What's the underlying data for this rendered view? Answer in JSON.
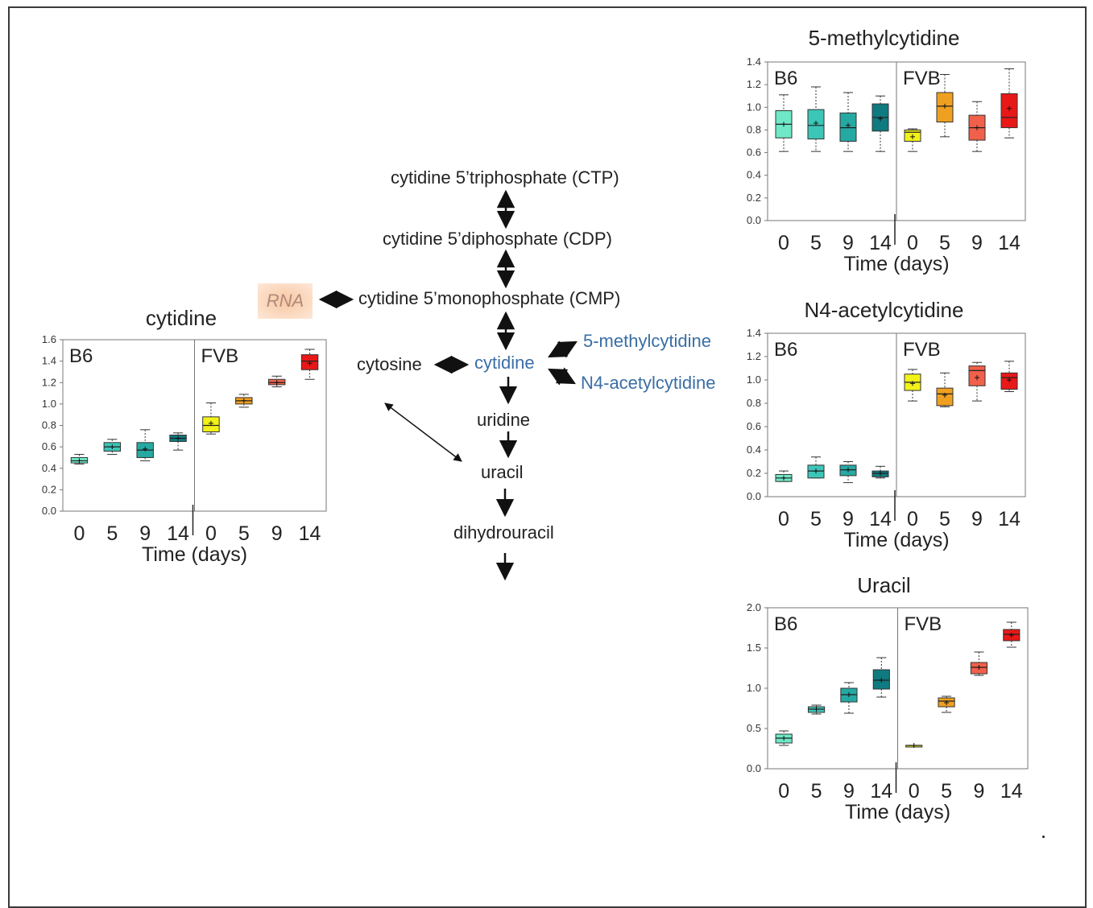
{
  "pathway": {
    "nodes": {
      "ctp": "cytidine 5’triphosphate (CTP)",
      "cdp": "cytidine 5’diphosphate (CDP)",
      "cmp": "cytidine 5’monophosphate (CMP)",
      "rna": "RNA",
      "cytosine": "cytosine",
      "cytidine": "cytidine",
      "methylcytidine": "5-methylcytidine",
      "acetylcytidine": "N4-acetylcytidine",
      "uridine": "uridine",
      "uracil": "uracil",
      "dihydrouracil": "dihydrouracil"
    },
    "colors": {
      "highlight_text": "#3a6ea5",
      "rna_highlight": "#f8c8a4",
      "arrow": "#111111"
    }
  },
  "chart_data": [
    {
      "id": "cytidine",
      "type": "box",
      "title": "cytidine",
      "xlabel": "Time (days)",
      "ylabel": "",
      "ylim": [
        0,
        1.6
      ],
      "yticks": [
        "0.0",
        "0.2",
        "0.4",
        "0.6",
        "0.8",
        "1.0",
        "1.2",
        "1.4",
        "1.6"
      ],
      "groups": [
        "B6",
        "FVB"
      ],
      "categories": [
        "0",
        "5",
        "9",
        "14",
        "0",
        "5",
        "9",
        "14"
      ],
      "boxes": [
        {
          "group": "B6",
          "x": "0",
          "min": 0.44,
          "q1": 0.45,
          "median": 0.47,
          "q3": 0.5,
          "max": 0.53,
          "mean": 0.47,
          "color": "#6fe8c8"
        },
        {
          "group": "B6",
          "x": "5",
          "min": 0.53,
          "q1": 0.56,
          "median": 0.6,
          "q3": 0.64,
          "max": 0.67,
          "mean": 0.6,
          "color": "#3cc6b8"
        },
        {
          "group": "B6",
          "x": "9",
          "min": 0.47,
          "q1": 0.5,
          "median": 0.57,
          "q3": 0.64,
          "max": 0.76,
          "mean": 0.58,
          "color": "#26a9a3"
        },
        {
          "group": "B6",
          "x": "14",
          "min": 0.57,
          "q1": 0.65,
          "median": 0.68,
          "q3": 0.71,
          "max": 0.73,
          "mean": 0.68,
          "color": "#0f7a80"
        },
        {
          "group": "FVB",
          "x": "0",
          "min": 0.72,
          "q1": 0.74,
          "median": 0.8,
          "q3": 0.88,
          "max": 1.01,
          "mean": 0.82,
          "color": "#f2f21a"
        },
        {
          "group": "FVB",
          "x": "5",
          "min": 0.97,
          "q1": 1.0,
          "median": 1.03,
          "q3": 1.06,
          "max": 1.09,
          "mean": 1.03,
          "color": "#f0a020"
        },
        {
          "group": "FVB",
          "x": "9",
          "min": 1.16,
          "q1": 1.18,
          "median": 1.2,
          "q3": 1.23,
          "max": 1.26,
          "mean": 1.2,
          "color": "#f0604a"
        },
        {
          "group": "FVB",
          "x": "14",
          "min": 1.23,
          "q1": 1.32,
          "median": 1.4,
          "q3": 1.46,
          "max": 1.51,
          "mean": 1.38,
          "color": "#e81818"
        }
      ]
    },
    {
      "id": "methylcytidine",
      "type": "box",
      "title": "5-methylcytidine",
      "xlabel": "Time (days)",
      "ylabel": "",
      "ylim": [
        0,
        1.4
      ],
      "yticks": [
        "0.0",
        "0.2",
        "0.4",
        "0.6",
        "0.8",
        "1.0",
        "1.2",
        "1.4"
      ],
      "groups": [
        "B6",
        "FVB"
      ],
      "categories": [
        "0",
        "5",
        "9",
        "14",
        "0",
        "5",
        "9",
        "14"
      ],
      "boxes": [
        {
          "group": "B6",
          "x": "0",
          "min": 0.61,
          "q1": 0.73,
          "median": 0.85,
          "q3": 0.97,
          "max": 1.11,
          "mean": 0.85,
          "color": "#6fe8c8"
        },
        {
          "group": "B6",
          "x": "5",
          "min": 0.61,
          "q1": 0.72,
          "median": 0.84,
          "q3": 0.98,
          "max": 1.18,
          "mean": 0.86,
          "color": "#3cc6b8"
        },
        {
          "group": "B6",
          "x": "9",
          "min": 0.61,
          "q1": 0.7,
          "median": 0.82,
          "q3": 0.95,
          "max": 1.13,
          "mean": 0.84,
          "color": "#26a9a3"
        },
        {
          "group": "B6",
          "x": "14",
          "min": 0.61,
          "q1": 0.79,
          "median": 0.91,
          "q3": 1.03,
          "max": 1.1,
          "mean": 0.9,
          "color": "#0f7a80"
        },
        {
          "group": "FVB",
          "x": "0",
          "min": 0.61,
          "q1": 0.7,
          "median": 0.78,
          "q3": 0.8,
          "max": 0.81,
          "mean": 0.74,
          "color": "#f2f21a"
        },
        {
          "group": "FVB",
          "x": "5",
          "min": 0.74,
          "q1": 0.87,
          "median": 1.01,
          "q3": 1.13,
          "max": 1.29,
          "mean": 1.01,
          "color": "#f0a020"
        },
        {
          "group": "FVB",
          "x": "9",
          "min": 0.61,
          "q1": 0.71,
          "median": 0.82,
          "q3": 0.93,
          "max": 1.05,
          "mean": 0.82,
          "color": "#f0604a"
        },
        {
          "group": "FVB",
          "x": "14",
          "min": 0.73,
          "q1": 0.82,
          "median": 0.91,
          "q3": 1.12,
          "max": 1.34,
          "mean": 0.99,
          "color": "#e81818"
        }
      ]
    },
    {
      "id": "acetylcytidine",
      "type": "box",
      "title": "N4-acetylcytidine",
      "xlabel": "Time (days)",
      "ylabel": "",
      "ylim": [
        0,
        1.4
      ],
      "yticks": [
        "0.0",
        "0.2",
        "0.4",
        "0.6",
        "0.8",
        "1.0",
        "1.2",
        "1.4"
      ],
      "groups": [
        "B6",
        "FVB"
      ],
      "categories": [
        "0",
        "5",
        "9",
        "14",
        "0",
        "5",
        "9",
        "14"
      ],
      "boxes": [
        {
          "group": "B6",
          "x": "0",
          "min": 0.13,
          "q1": 0.13,
          "median": 0.16,
          "q3": 0.19,
          "max": 0.22,
          "mean": 0.16,
          "color": "#6fe8c8"
        },
        {
          "group": "B6",
          "x": "5",
          "min": 0.16,
          "q1": 0.16,
          "median": 0.22,
          "q3": 0.27,
          "max": 0.34,
          "mean": 0.22,
          "color": "#3cc6b8"
        },
        {
          "group": "B6",
          "x": "9",
          "min": 0.12,
          "q1": 0.18,
          "median": 0.23,
          "q3": 0.27,
          "max": 0.3,
          "mean": 0.23,
          "color": "#26a9a3"
        },
        {
          "group": "B6",
          "x": "14",
          "min": 0.16,
          "q1": 0.17,
          "median": 0.2,
          "q3": 0.22,
          "max": 0.26,
          "mean": 0.2,
          "color": "#0f7a80"
        },
        {
          "group": "FVB",
          "x": "0",
          "min": 0.82,
          "q1": 0.91,
          "median": 0.98,
          "q3": 1.05,
          "max": 1.09,
          "mean": 0.97,
          "color": "#f2f21a"
        },
        {
          "group": "FVB",
          "x": "5",
          "min": 0.77,
          "q1": 0.78,
          "median": 0.88,
          "q3": 0.93,
          "max": 1.06,
          "mean": 0.87,
          "color": "#f0a020"
        },
        {
          "group": "FVB",
          "x": "9",
          "min": 0.82,
          "q1": 0.95,
          "median": 1.08,
          "q3": 1.12,
          "max": 1.15,
          "mean": 1.02,
          "color": "#f0604a"
        },
        {
          "group": "FVB",
          "x": "14",
          "min": 0.9,
          "q1": 0.92,
          "median": 1.02,
          "q3": 1.06,
          "max": 1.16,
          "mean": 1.0,
          "color": "#e81818"
        }
      ]
    },
    {
      "id": "uracil",
      "type": "box",
      "title": "Uracil",
      "xlabel": "Time (days)",
      "ylabel": "",
      "ylim": [
        0,
        2.0
      ],
      "yticks": [
        "0.0",
        "0.5",
        "1.0",
        "1.5",
        "2.0"
      ],
      "groups": [
        "B6",
        "FVB"
      ],
      "categories": [
        "0",
        "5",
        "9",
        "14",
        "0",
        "5",
        "9",
        "14"
      ],
      "boxes": [
        {
          "group": "B6",
          "x": "0",
          "min": 0.29,
          "q1": 0.32,
          "median": 0.38,
          "q3": 0.43,
          "max": 0.47,
          "mean": 0.38,
          "color": "#6fe8c8"
        },
        {
          "group": "B6",
          "x": "5",
          "min": 0.68,
          "q1": 0.7,
          "median": 0.74,
          "q3": 0.77,
          "max": 0.79,
          "mean": 0.74,
          "color": "#3cc6b8"
        },
        {
          "group": "B6",
          "x": "9",
          "min": 0.69,
          "q1": 0.83,
          "median": 0.92,
          "q3": 1.0,
          "max": 1.07,
          "mean": 0.92,
          "color": "#26a9a3"
        },
        {
          "group": "B6",
          "x": "14",
          "min": 0.89,
          "q1": 0.99,
          "median": 1.1,
          "q3": 1.23,
          "max": 1.38,
          "mean": 1.1,
          "color": "#0f7a80"
        },
        {
          "group": "FVB",
          "x": "0",
          "min": 0.28,
          "q1": 0.28,
          "median": 0.29,
          "q3": 0.29,
          "max": 0.29,
          "mean": 0.29,
          "color": "#f2f21a"
        },
        {
          "group": "FVB",
          "x": "5",
          "min": 0.7,
          "q1": 0.77,
          "median": 0.84,
          "q3": 0.88,
          "max": 0.9,
          "mean": 0.82,
          "color": "#f0a020"
        },
        {
          "group": "FVB",
          "x": "9",
          "min": 1.16,
          "q1": 1.18,
          "median": 1.26,
          "q3": 1.32,
          "max": 1.45,
          "mean": 1.26,
          "color": "#f0604a"
        },
        {
          "group": "FVB",
          "x": "14",
          "min": 1.51,
          "q1": 1.59,
          "median": 1.67,
          "q3": 1.73,
          "max": 1.82,
          "mean": 1.66,
          "color": "#e81818"
        }
      ]
    }
  ]
}
